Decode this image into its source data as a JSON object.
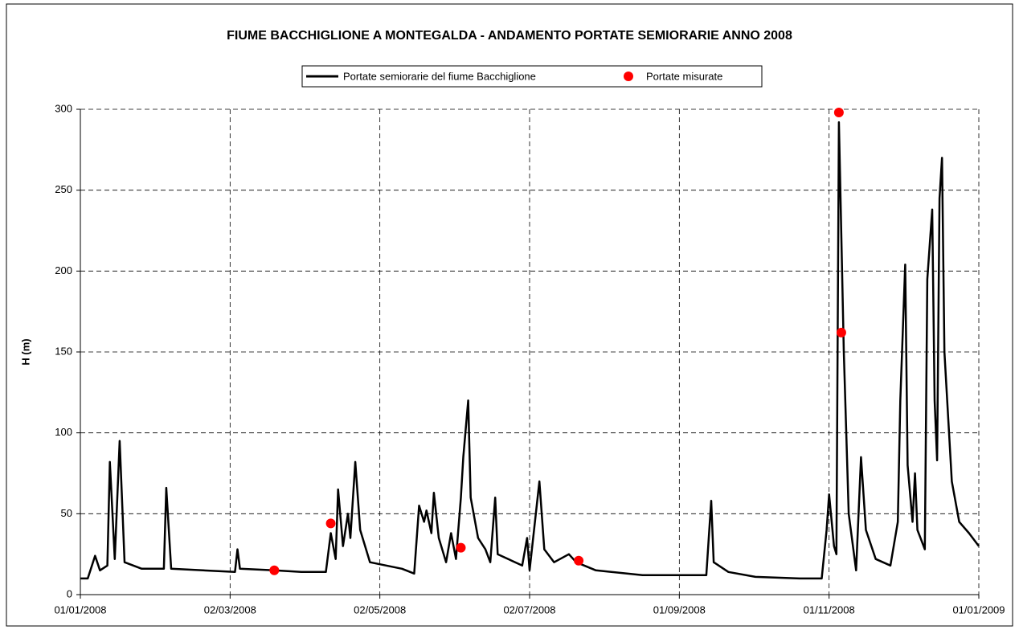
{
  "chart_data": {
    "type": "line",
    "title": "FIUME BACCHIGLIONE A MONTEGALDA - ANDAMENTO PORTATE SEMIORARIE ANNO 2008",
    "y_label": "H (m)",
    "xlim": [
      "2008-01-01",
      "2009-01-01"
    ],
    "xticks": [
      {
        "value": "2008-01-01",
        "label": "01/01/2008"
      },
      {
        "value": "2008-03-02",
        "label": "02/03/2008"
      },
      {
        "value": "2008-05-02",
        "label": "02/05/2008"
      },
      {
        "value": "2008-07-02",
        "label": "02/07/2008"
      },
      {
        "value": "2008-09-01",
        "label": "01/09/2008"
      },
      {
        "value": "2008-11-01",
        "label": "01/11/2008"
      },
      {
        "value": "2009-01-01",
        "label": "01/01/2009"
      }
    ],
    "ylim": [
      0,
      300
    ],
    "yticks": [
      0,
      50,
      100,
      150,
      200,
      250,
      300
    ],
    "grid": true,
    "legend": "top",
    "series": [
      {
        "name": "Portate semiorarie del fiume Bacchiglione",
        "type": "line",
        "color": "#000000",
        "x": [
          "2008-01-01",
          "2008-01-04",
          "2008-01-07",
          "2008-01-09",
          "2008-01-12",
          "2008-01-13",
          "2008-01-15",
          "2008-01-17",
          "2008-01-19",
          "2008-01-26",
          "2008-02-04",
          "2008-02-05",
          "2008-02-07",
          "2008-02-20",
          "2008-03-04",
          "2008-03-05",
          "2008-03-06",
          "2008-03-20",
          "2008-03-31",
          "2008-04-10",
          "2008-04-12",
          "2008-04-14",
          "2008-04-15",
          "2008-04-17",
          "2008-04-19",
          "2008-04-20",
          "2008-04-22",
          "2008-04-24",
          "2008-04-28",
          "2008-05-11",
          "2008-05-16",
          "2008-05-18",
          "2008-05-20",
          "2008-05-21",
          "2008-05-23",
          "2008-05-24",
          "2008-05-26",
          "2008-05-29",
          "2008-05-31",
          "2008-06-02",
          "2008-06-04",
          "2008-06-05",
          "2008-06-07",
          "2008-06-08",
          "2008-06-11",
          "2008-06-14",
          "2008-06-16",
          "2008-06-18",
          "2008-06-19",
          "2008-06-29",
          "2008-07-01",
          "2008-07-02",
          "2008-07-06",
          "2008-07-08",
          "2008-07-12",
          "2008-07-18",
          "2008-07-21",
          "2008-07-29",
          "2008-08-17",
          "2008-08-30",
          "2008-09-12",
          "2008-09-14",
          "2008-09-15",
          "2008-09-21",
          "2008-10-02",
          "2008-10-20",
          "2008-10-29",
          "2008-10-31",
          "2008-11-01",
          "2008-11-03",
          "2008-11-04",
          "2008-11-05",
          "2008-11-07",
          "2008-11-09",
          "2008-11-12",
          "2008-11-14",
          "2008-11-16",
          "2008-11-20",
          "2008-11-26",
          "2008-11-29",
          "2008-11-30",
          "2008-12-02",
          "2008-12-03",
          "2008-12-05",
          "2008-12-06",
          "2008-12-07",
          "2008-12-10",
          "2008-12-11",
          "2008-12-13",
          "2008-12-14",
          "2008-12-15",
          "2008-12-16",
          "2008-12-17",
          "2008-12-18",
          "2008-12-21",
          "2008-12-24",
          "2008-12-28",
          "2009-01-01"
        ],
        "values": [
          10,
          10,
          24,
          15,
          18,
          82,
          22,
          95,
          20,
          16,
          16,
          66,
          16,
          15,
          14,
          28,
          16,
          15,
          14,
          14,
          38,
          22,
          65,
          30,
          50,
          35,
          82,
          40,
          20,
          16,
          13,
          55,
          45,
          52,
          38,
          63,
          35,
          20,
          38,
          22,
          60,
          85,
          120,
          60,
          35,
          28,
          20,
          60,
          25,
          18,
          35,
          15,
          70,
          28,
          20,
          25,
          20,
          15,
          12,
          12,
          12,
          58,
          20,
          14,
          11,
          10,
          10,
          40,
          62,
          30,
          25,
          292,
          150,
          50,
          15,
          85,
          40,
          22,
          18,
          45,
          120,
          204,
          80,
          45,
          75,
          40,
          28,
          195,
          238,
          120,
          83,
          245,
          270,
          150,
          70,
          45,
          38,
          30
        ]
      },
      {
        "name": "Portate misurate",
        "type": "scatter",
        "color": "#ff0000",
        "x": [
          "2008-03-20",
          "2008-04-12",
          "2008-06-04",
          "2008-07-22",
          "2008-11-05",
          "2008-11-06"
        ],
        "values": [
          15,
          44,
          29,
          21,
          298,
          162
        ]
      }
    ]
  }
}
